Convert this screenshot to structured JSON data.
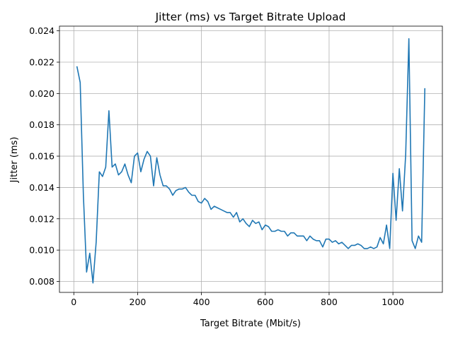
{
  "chart_data": {
    "type": "line",
    "title": "Jitter (ms) vs Target Bitrate Upload",
    "xlabel": "Target Bitrate (Mbit/s)",
    "ylabel": "Jitter (ms)",
    "xlim": [
      -45,
      1155
    ],
    "ylim": [
      0.0073,
      0.0243
    ],
    "xticks": [
      0,
      200,
      400,
      600,
      800,
      1000
    ],
    "xtick_labels": [
      "0",
      "200",
      "400",
      "600",
      "800",
      "1000"
    ],
    "yticks": [
      0.008,
      0.01,
      0.012,
      0.014,
      0.016,
      0.018,
      0.02,
      0.022,
      0.024
    ],
    "ytick_labels": [
      "0.008",
      "0.010",
      "0.012",
      "0.014",
      "0.016",
      "0.018",
      "0.020",
      "0.022",
      "0.024"
    ],
    "grid": true,
    "line_color": "#1f77b4",
    "series": [
      {
        "x": [
          10,
          20,
          30,
          40,
          50,
          60,
          70,
          80,
          90,
          100,
          110,
          120,
          130,
          140,
          150,
          160,
          170,
          180,
          190,
          200,
          210,
          220,
          230,
          240,
          250,
          260,
          270,
          280,
          290,
          300,
          310,
          320,
          330,
          340,
          350,
          360,
          370,
          380,
          390,
          400,
          410,
          420,
          430,
          440,
          450,
          460,
          470,
          480,
          490,
          500,
          510,
          520,
          530,
          540,
          550,
          560,
          570,
          580,
          590,
          600,
          610,
          620,
          630,
          640,
          650,
          660,
          670,
          680,
          690,
          700,
          710,
          720,
          730,
          740,
          750,
          760,
          770,
          780,
          790,
          800,
          810,
          820,
          830,
          840,
          850,
          860,
          870,
          880,
          890,
          900,
          910,
          920,
          930,
          940,
          950,
          960,
          970,
          980,
          990,
          1000,
          1010,
          1020,
          1030,
          1040,
          1050,
          1060,
          1070,
          1080,
          1090,
          1100
        ],
        "y": [
          0.0217,
          0.0207,
          0.0135,
          0.0086,
          0.0098,
          0.0079,
          0.0105,
          0.015,
          0.0147,
          0.0153,
          0.0189,
          0.0153,
          0.0155,
          0.0148,
          0.015,
          0.0155,
          0.0148,
          0.0143,
          0.016,
          0.0162,
          0.015,
          0.0158,
          0.0163,
          0.016,
          0.0141,
          0.0159,
          0.0148,
          0.0141,
          0.0141,
          0.0139,
          0.0135,
          0.0138,
          0.0139,
          0.0139,
          0.014,
          0.0137,
          0.0135,
          0.0135,
          0.0131,
          0.013,
          0.0133,
          0.0131,
          0.0126,
          0.0128,
          0.0127,
          0.0126,
          0.0125,
          0.0124,
          0.0124,
          0.0121,
          0.0124,
          0.0118,
          0.012,
          0.0117,
          0.0115,
          0.0119,
          0.0117,
          0.0118,
          0.0113,
          0.0116,
          0.0115,
          0.0112,
          0.0112,
          0.0113,
          0.0112,
          0.0112,
          0.0109,
          0.0111,
          0.0111,
          0.0109,
          0.0109,
          0.0109,
          0.0106,
          0.0109,
          0.0107,
          0.0106,
          0.0106,
          0.0102,
          0.0107,
          0.0107,
          0.0105,
          0.0106,
          0.0104,
          0.0105,
          0.0103,
          0.0101,
          0.0103,
          0.0103,
          0.0104,
          0.0103,
          0.0101,
          0.0101,
          0.0102,
          0.0101,
          0.0102,
          0.0108,
          0.0104,
          0.0116,
          0.0101,
          0.0149,
          0.0119,
          0.0152,
          0.0125,
          0.0161,
          0.0235,
          0.0106,
          0.0101,
          0.0109,
          0.0105,
          0.0203
        ]
      }
    ]
  }
}
